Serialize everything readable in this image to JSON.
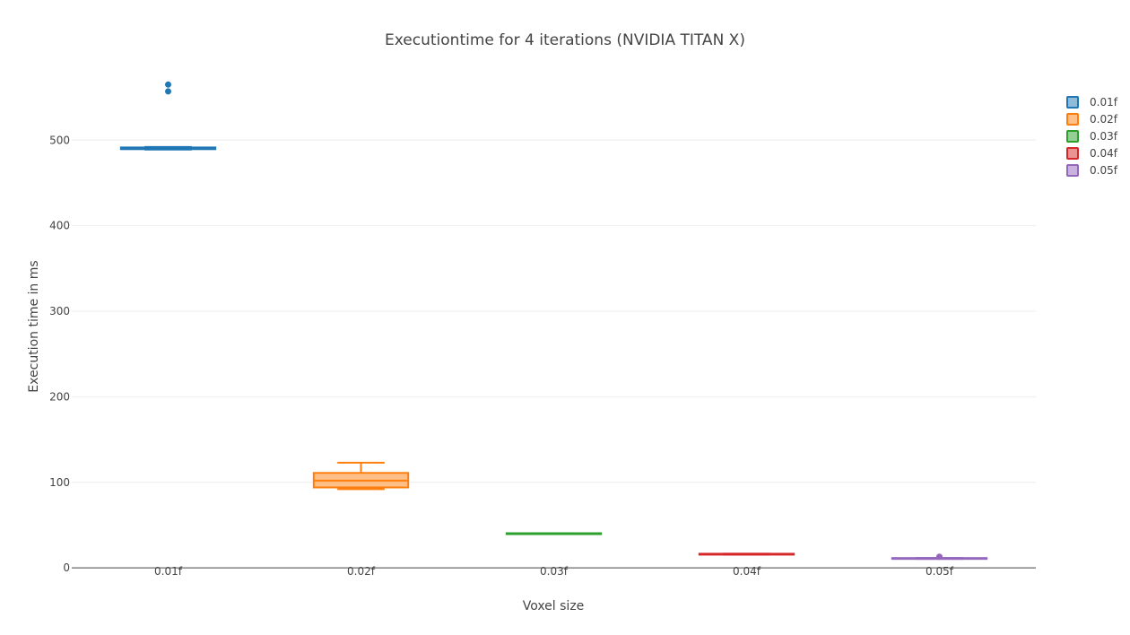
{
  "chart_data": {
    "type": "box",
    "title": "Executiontime for 4 iterations (NVIDIA TITAN X)",
    "xlabel": "Voxel size",
    "ylabel": "Execution time in ms",
    "categories": [
      "0.01f",
      "0.02f",
      "0.03f",
      "0.04f",
      "0.05f"
    ],
    "ylim": [
      -3,
      580
    ],
    "yticks": [
      0,
      100,
      200,
      300,
      400,
      500
    ],
    "grid": true,
    "legend_position": "top-right",
    "series": [
      {
        "name": "0.01f",
        "color": "#1f77b4",
        "q1": 489.5,
        "median": 490.5,
        "q3": 491.5,
        "lower_fence": 489,
        "upper_fence": 492,
        "outliers": [
          557,
          565
        ]
      },
      {
        "name": "0.02f",
        "color": "#ff7f0e",
        "q1": 94,
        "median": 102,
        "q3": 111,
        "lower_fence": 92,
        "upper_fence": 123,
        "outliers": []
      },
      {
        "name": "0.03f",
        "color": "#2ca02c",
        "q1": 39.5,
        "median": 40,
        "q3": 40.5,
        "lower_fence": 39.5,
        "upper_fence": 40.5,
        "outliers": []
      },
      {
        "name": "0.04f",
        "color": "#d62728",
        "q1": 15.5,
        "median": 16,
        "q3": 16.5,
        "lower_fence": 15.5,
        "upper_fence": 16.5,
        "outliers": []
      },
      {
        "name": "0.05f",
        "color": "#9467bd",
        "q1": 10.5,
        "median": 11,
        "q3": 11.5,
        "lower_fence": 10.5,
        "upper_fence": 11.5,
        "outliers": [
          13
        ]
      }
    ]
  }
}
